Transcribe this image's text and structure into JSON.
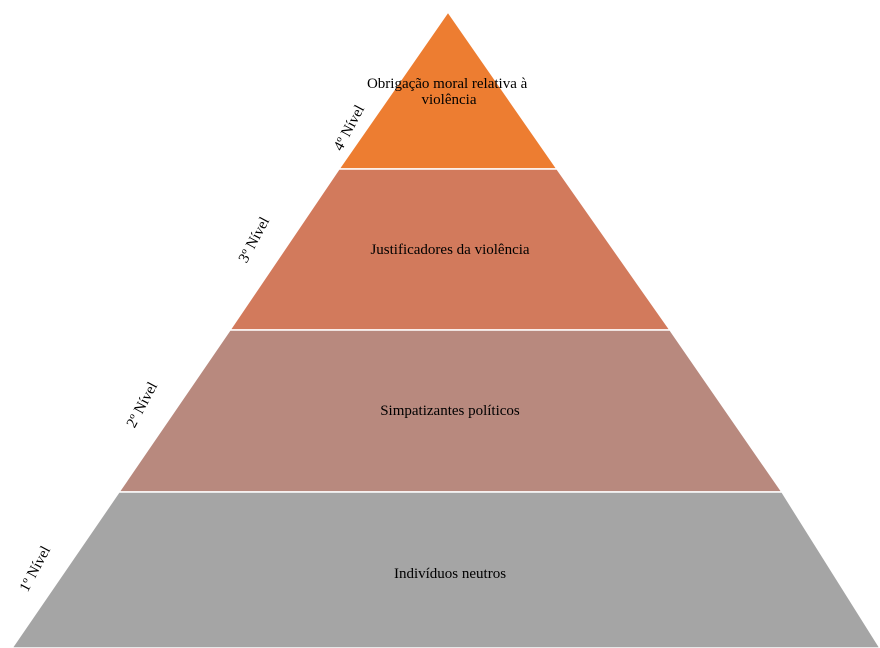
{
  "pyramid": {
    "tiers": [
      {
        "level": "4º Nível",
        "lines": [
          "Obrigação moral relativa à",
          "violência"
        ],
        "color": "#ED7D31"
      },
      {
        "level": "3º Nível",
        "lines": [
          "Justificadores da violência"
        ],
        "color": "#D27A5C"
      },
      {
        "level": "2º Nível",
        "lines": [
          "Simpatizantes políticos"
        ],
        "color": "#B8897E"
      },
      {
        "level": "1º Nível",
        "lines": [
          "Indivíduos neutros"
        ],
        "color": "#A5A5A5"
      }
    ]
  }
}
